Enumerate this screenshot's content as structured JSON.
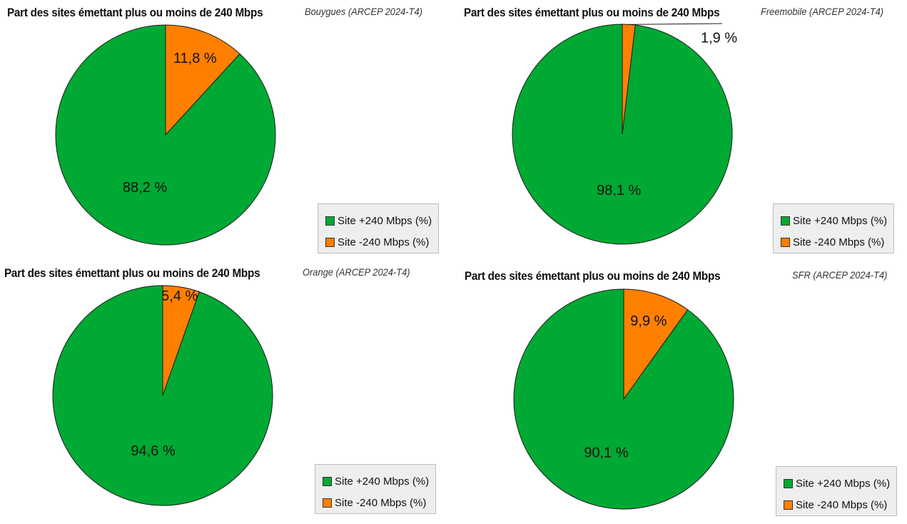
{
  "legend": {
    "items": [
      {
        "label": "Site +240 Mbps (%)",
        "color": "#00a933"
      },
      {
        "label": "Site -240 Mbps (%)",
        "color": "#ff8000"
      }
    ]
  },
  "chart_data": [
    {
      "type": "pie",
      "title": "Part des sites émettant plus ou moins de 240 Mbps",
      "subtitle": "Bouygues (ARCEP 2024-T4)",
      "categories": [
        "Site +240 Mbps (%)",
        "Site -240 Mbps (%)"
      ],
      "values": [
        88.2,
        11.8
      ],
      "labels": [
        "88,2 %",
        "11,8 %"
      ],
      "colors": [
        "#00a933",
        "#ff8000"
      ],
      "legend_position": "bottom-right"
    },
    {
      "type": "pie",
      "title": "Part des sites émettant plus ou moins de 240 Mbps",
      "subtitle": "Freemobile (ARCEP 2024-T4)",
      "categories": [
        "Site +240 Mbps (%)",
        "Site -240 Mbps (%)"
      ],
      "values": [
        98.1,
        1.9
      ],
      "labels": [
        "98,1 %",
        "1,9 %"
      ],
      "colors": [
        "#00a933",
        "#ff8000"
      ],
      "legend_position": "bottom-right"
    },
    {
      "type": "pie",
      "title": "Part des sites émettant plus ou moins de 240 Mbps",
      "subtitle": "Orange (ARCEP 2024-T4)",
      "categories": [
        "Site +240 Mbps (%)",
        "Site -240 Mbps (%)"
      ],
      "values": [
        94.6,
        5.4
      ],
      "labels": [
        "94,6 %",
        "5,4 %"
      ],
      "colors": [
        "#00a933",
        "#ff8000"
      ],
      "legend_position": "bottom-right"
    },
    {
      "type": "pie",
      "title": "Part des sites émettant plus ou moins de 240 Mbps",
      "subtitle": "SFR (ARCEP 2024-T4)",
      "categories": [
        "Site +240 Mbps (%)",
        "Site -240 Mbps (%)"
      ],
      "values": [
        90.1,
        9.9
      ],
      "labels": [
        "90,1 %",
        "9,9 %"
      ],
      "colors": [
        "#00a933",
        "#ff8000"
      ],
      "legend_position": "bottom-right"
    }
  ]
}
